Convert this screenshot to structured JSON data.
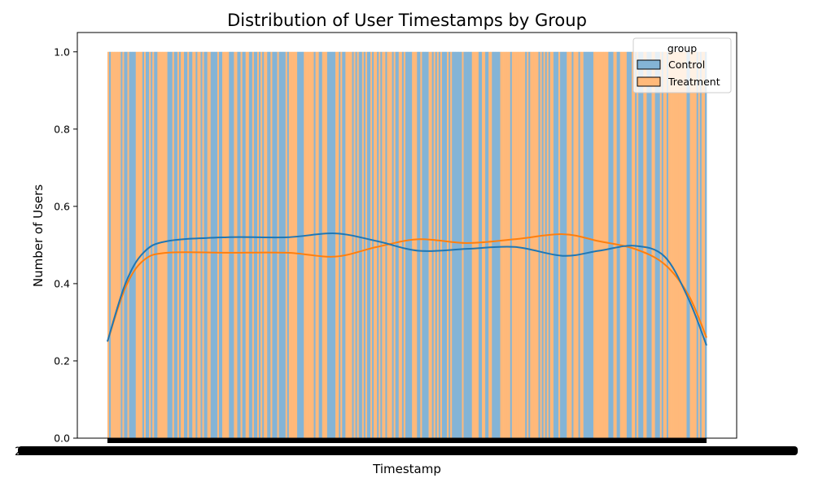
{
  "chart_data": {
    "type": "bar",
    "title": "Distribution of User Timestamps by Group",
    "xlabel": "Timestamp",
    "ylabel": "Number of Users",
    "ylim": [
      0,
      1.05
    ],
    "yticks": [
      0.0,
      0.2,
      0.4,
      0.6,
      0.8,
      1.0
    ],
    "ytick_labels": [
      "0.0",
      "0.2",
      "0.4",
      "0.6",
      "0.8",
      "1.0"
    ],
    "x_tick_labels_legible": false,
    "bar_value": 1.0,
    "bar_count": 360,
    "legend": {
      "title": "group",
      "placement": "top-right",
      "entries": [
        "Control",
        "Treatment"
      ]
    },
    "series": [
      {
        "name": "Control",
        "color": "#1f77b4",
        "kde": [
          {
            "t": 0.0,
            "v": 0.25
          },
          {
            "t": 0.03,
            "v": 0.4
          },
          {
            "t": 0.06,
            "v": 0.48
          },
          {
            "t": 0.1,
            "v": 0.51
          },
          {
            "t": 0.2,
            "v": 0.52
          },
          {
            "t": 0.3,
            "v": 0.52
          },
          {
            "t": 0.38,
            "v": 0.53
          },
          {
            "t": 0.45,
            "v": 0.51
          },
          {
            "t": 0.52,
            "v": 0.485
          },
          {
            "t": 0.6,
            "v": 0.49
          },
          {
            "t": 0.68,
            "v": 0.495
          },
          {
            "t": 0.76,
            "v": 0.472
          },
          {
            "t": 0.82,
            "v": 0.485
          },
          {
            "t": 0.88,
            "v": 0.498
          },
          {
            "t": 0.93,
            "v": 0.47
          },
          {
            "t": 0.97,
            "v": 0.36
          },
          {
            "t": 1.0,
            "v": 0.24
          }
        ]
      },
      {
        "name": "Treatment",
        "color": "#ff7f0e",
        "kde": [
          {
            "t": 0.0,
            "v": 0.25
          },
          {
            "t": 0.03,
            "v": 0.39
          },
          {
            "t": 0.06,
            "v": 0.46
          },
          {
            "t": 0.1,
            "v": 0.48
          },
          {
            "t": 0.2,
            "v": 0.48
          },
          {
            "t": 0.3,
            "v": 0.48
          },
          {
            "t": 0.38,
            "v": 0.47
          },
          {
            "t": 0.45,
            "v": 0.495
          },
          {
            "t": 0.52,
            "v": 0.515
          },
          {
            "t": 0.6,
            "v": 0.505
          },
          {
            "t": 0.68,
            "v": 0.515
          },
          {
            "t": 0.76,
            "v": 0.528
          },
          {
            "t": 0.82,
            "v": 0.51
          },
          {
            "t": 0.88,
            "v": 0.49
          },
          {
            "t": 0.93,
            "v": 0.45
          },
          {
            "t": 0.97,
            "v": 0.37
          },
          {
            "t": 1.0,
            "v": 0.26
          }
        ]
      }
    ]
  }
}
